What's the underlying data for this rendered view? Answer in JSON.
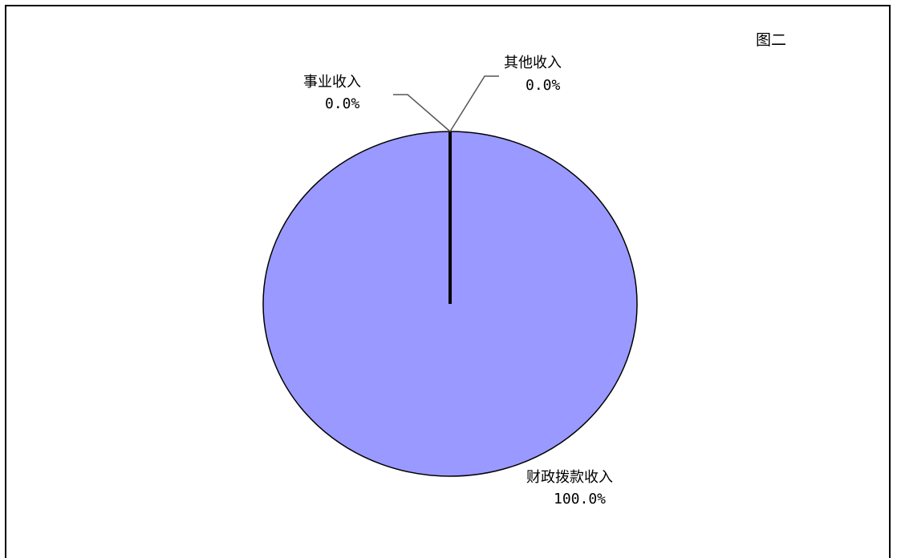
{
  "chart_data": {
    "type": "pie",
    "title": "图二",
    "slices": [
      {
        "label": "财政拨款收入",
        "value": 100.0,
        "percent_label": "100.0%",
        "color": "#9999ff"
      },
      {
        "label": "事业收入",
        "value": 0.0,
        "percent_label": "0.0%",
        "color": "#993366"
      },
      {
        "label": "其他收入",
        "value": 0.0,
        "percent_label": "0.0%",
        "color": "#ffffcc"
      }
    ],
    "legend": "none"
  }
}
